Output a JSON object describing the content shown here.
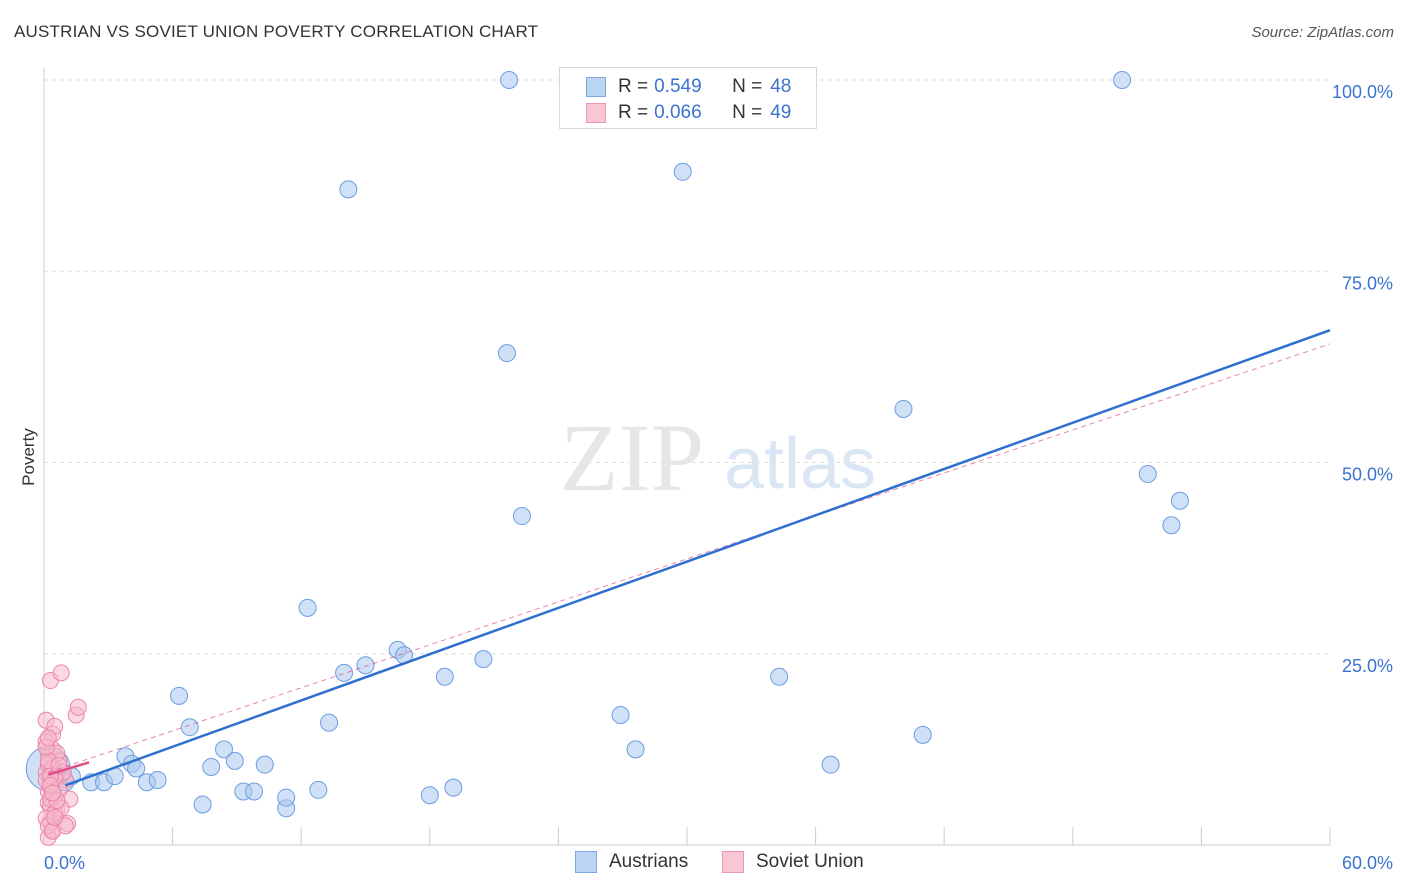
{
  "title": "AUSTRIAN VS SOVIET UNION POVERTY CORRELATION CHART",
  "source": "Source: ZipAtlas.com",
  "watermark": {
    "zip": "ZIP",
    "atlas": "atlas"
  },
  "legend": {
    "series1": {
      "r_label": "R =",
      "r_value": "0.549",
      "n_label": "N =",
      "n_value": "48"
    },
    "series2": {
      "r_label": "R =",
      "r_value": "0.066",
      "n_label": "N =",
      "n_value": "49"
    }
  },
  "bottom_legend": {
    "series1": "Austrians",
    "series2": "Soviet Union"
  },
  "colors": {
    "blue_fill": "#a9c8f0",
    "blue_stroke": "#6d9de0",
    "blue_line": "#2f6fd0",
    "pink_fill": "#f7b8ca",
    "pink_stroke": "#e888a8",
    "pink_line": "#e0508a",
    "tick_text": "#3b73d1",
    "grid": "#dddddd"
  },
  "chart_data": {
    "type": "scatter",
    "title": "AUSTRIAN VS SOVIET UNION POVERTY CORRELATION CHART",
    "xlabel": "",
    "ylabel": "Poverty",
    "xlim": [
      0,
      60
    ],
    "ylim": [
      0,
      100
    ],
    "x_tick_labels": [
      "0.0%",
      "60.0%"
    ],
    "y_ticks": [
      25,
      50,
      75,
      100
    ],
    "y_tick_labels": [
      "25.0%",
      "50.0%",
      "75.0%",
      "100.0%"
    ],
    "grid": true,
    "series": [
      {
        "name": "Austrians",
        "color": "#a9c8f0",
        "r": 0.549,
        "n": 48,
        "points": [
          [
            0.2,
            10.0
          ],
          [
            1.0,
            8.2
          ],
          [
            1.3,
            9.0
          ],
          [
            2.2,
            8.2
          ],
          [
            2.8,
            8.2
          ],
          [
            3.3,
            9.0
          ],
          [
            3.8,
            11.6
          ],
          [
            4.1,
            10.6
          ],
          [
            4.8,
            8.2
          ],
          [
            4.3,
            10.0
          ],
          [
            5.3,
            8.5
          ],
          [
            6.3,
            19.5
          ],
          [
            6.8,
            15.4
          ],
          [
            7.4,
            5.3
          ],
          [
            7.8,
            10.2
          ],
          [
            8.4,
            12.5
          ],
          [
            8.9,
            11.0
          ],
          [
            9.3,
            7.0
          ],
          [
            9.8,
            7.0
          ],
          [
            10.3,
            10.5
          ],
          [
            11.3,
            4.8
          ],
          [
            11.3,
            6.2
          ],
          [
            12.3,
            31.0
          ],
          [
            12.8,
            7.2
          ],
          [
            13.3,
            16.0
          ],
          [
            14.0,
            22.5
          ],
          [
            14.2,
            85.7
          ],
          [
            15.0,
            23.5
          ],
          [
            16.5,
            25.5
          ],
          [
            16.8,
            24.8
          ],
          [
            18.0,
            6.5
          ],
          [
            18.7,
            22.0
          ],
          [
            19.1,
            7.5
          ],
          [
            20.5,
            24.3
          ],
          [
            21.6,
            64.3
          ],
          [
            21.7,
            100.0
          ],
          [
            22.3,
            43.0
          ],
          [
            26.9,
            17.0
          ],
          [
            27.6,
            12.5
          ],
          [
            29.8,
            88.0
          ],
          [
            34.3,
            22.0
          ],
          [
            36.7,
            10.5
          ],
          [
            40.1,
            57.0
          ],
          [
            41.0,
            14.4
          ],
          [
            50.3,
            100.0
          ],
          [
            51.5,
            48.5
          ],
          [
            52.6,
            41.8
          ],
          [
            53.0,
            45.0
          ]
        ],
        "trendline": {
          "x": [
            1.0,
            60.0
          ],
          "y": [
            7.8,
            67.3
          ]
        }
      },
      {
        "name": "Soviet Union",
        "color": "#f7b8ca",
        "r": 0.066,
        "n": 49,
        "points": [
          [
            0.1,
            9.5
          ],
          [
            0.2,
            12.0
          ],
          [
            0.3,
            7.5
          ],
          [
            0.2,
            5.5
          ],
          [
            0.4,
            14.5
          ],
          [
            0.1,
            16.3
          ],
          [
            0.3,
            21.5
          ],
          [
            0.5,
            15.5
          ],
          [
            0.4,
            12.5
          ],
          [
            0.2,
            10.5
          ],
          [
            0.3,
            8.0
          ],
          [
            0.5,
            6.5
          ],
          [
            0.6,
            4.5
          ],
          [
            0.3,
            3.0
          ],
          [
            0.4,
            2.0
          ],
          [
            0.2,
            1.0
          ],
          [
            0.7,
            11.0
          ],
          [
            0.6,
            9.0
          ],
          [
            0.8,
            22.5
          ],
          [
            1.0,
            8.5
          ],
          [
            1.2,
            6.0
          ],
          [
            1.1,
            2.8
          ],
          [
            1.5,
            17.0
          ],
          [
            1.6,
            18.0
          ],
          [
            0.1,
            13.5
          ],
          [
            0.2,
            7.0
          ],
          [
            0.3,
            5.0
          ],
          [
            0.5,
            4.2
          ],
          [
            0.1,
            3.5
          ],
          [
            0.4,
            10.0
          ],
          [
            0.6,
            12.0
          ],
          [
            0.2,
            11.0
          ],
          [
            0.9,
            9.5
          ],
          [
            0.7,
            7.2
          ],
          [
            0.3,
            6.0
          ],
          [
            0.5,
            8.8
          ],
          [
            0.2,
            2.5
          ],
          [
            0.4,
            1.8
          ],
          [
            0.8,
            4.8
          ],
          [
            1.0,
            2.5
          ],
          [
            0.1,
            8.5
          ],
          [
            0.3,
            9.0
          ],
          [
            0.6,
            5.8
          ],
          [
            0.1,
            12.8
          ],
          [
            0.2,
            14.0
          ],
          [
            0.5,
            3.6
          ],
          [
            0.3,
            7.8
          ],
          [
            0.7,
            10.4
          ],
          [
            0.4,
            6.8
          ]
        ],
        "trendline": {
          "x": [
            0.2,
            2.1
          ],
          "y": [
            9.2,
            10.8
          ]
        },
        "dashed_trendline": {
          "x": [
            0.2,
            60.0
          ],
          "y": [
            9.5,
            65.5
          ]
        }
      }
    ]
  }
}
